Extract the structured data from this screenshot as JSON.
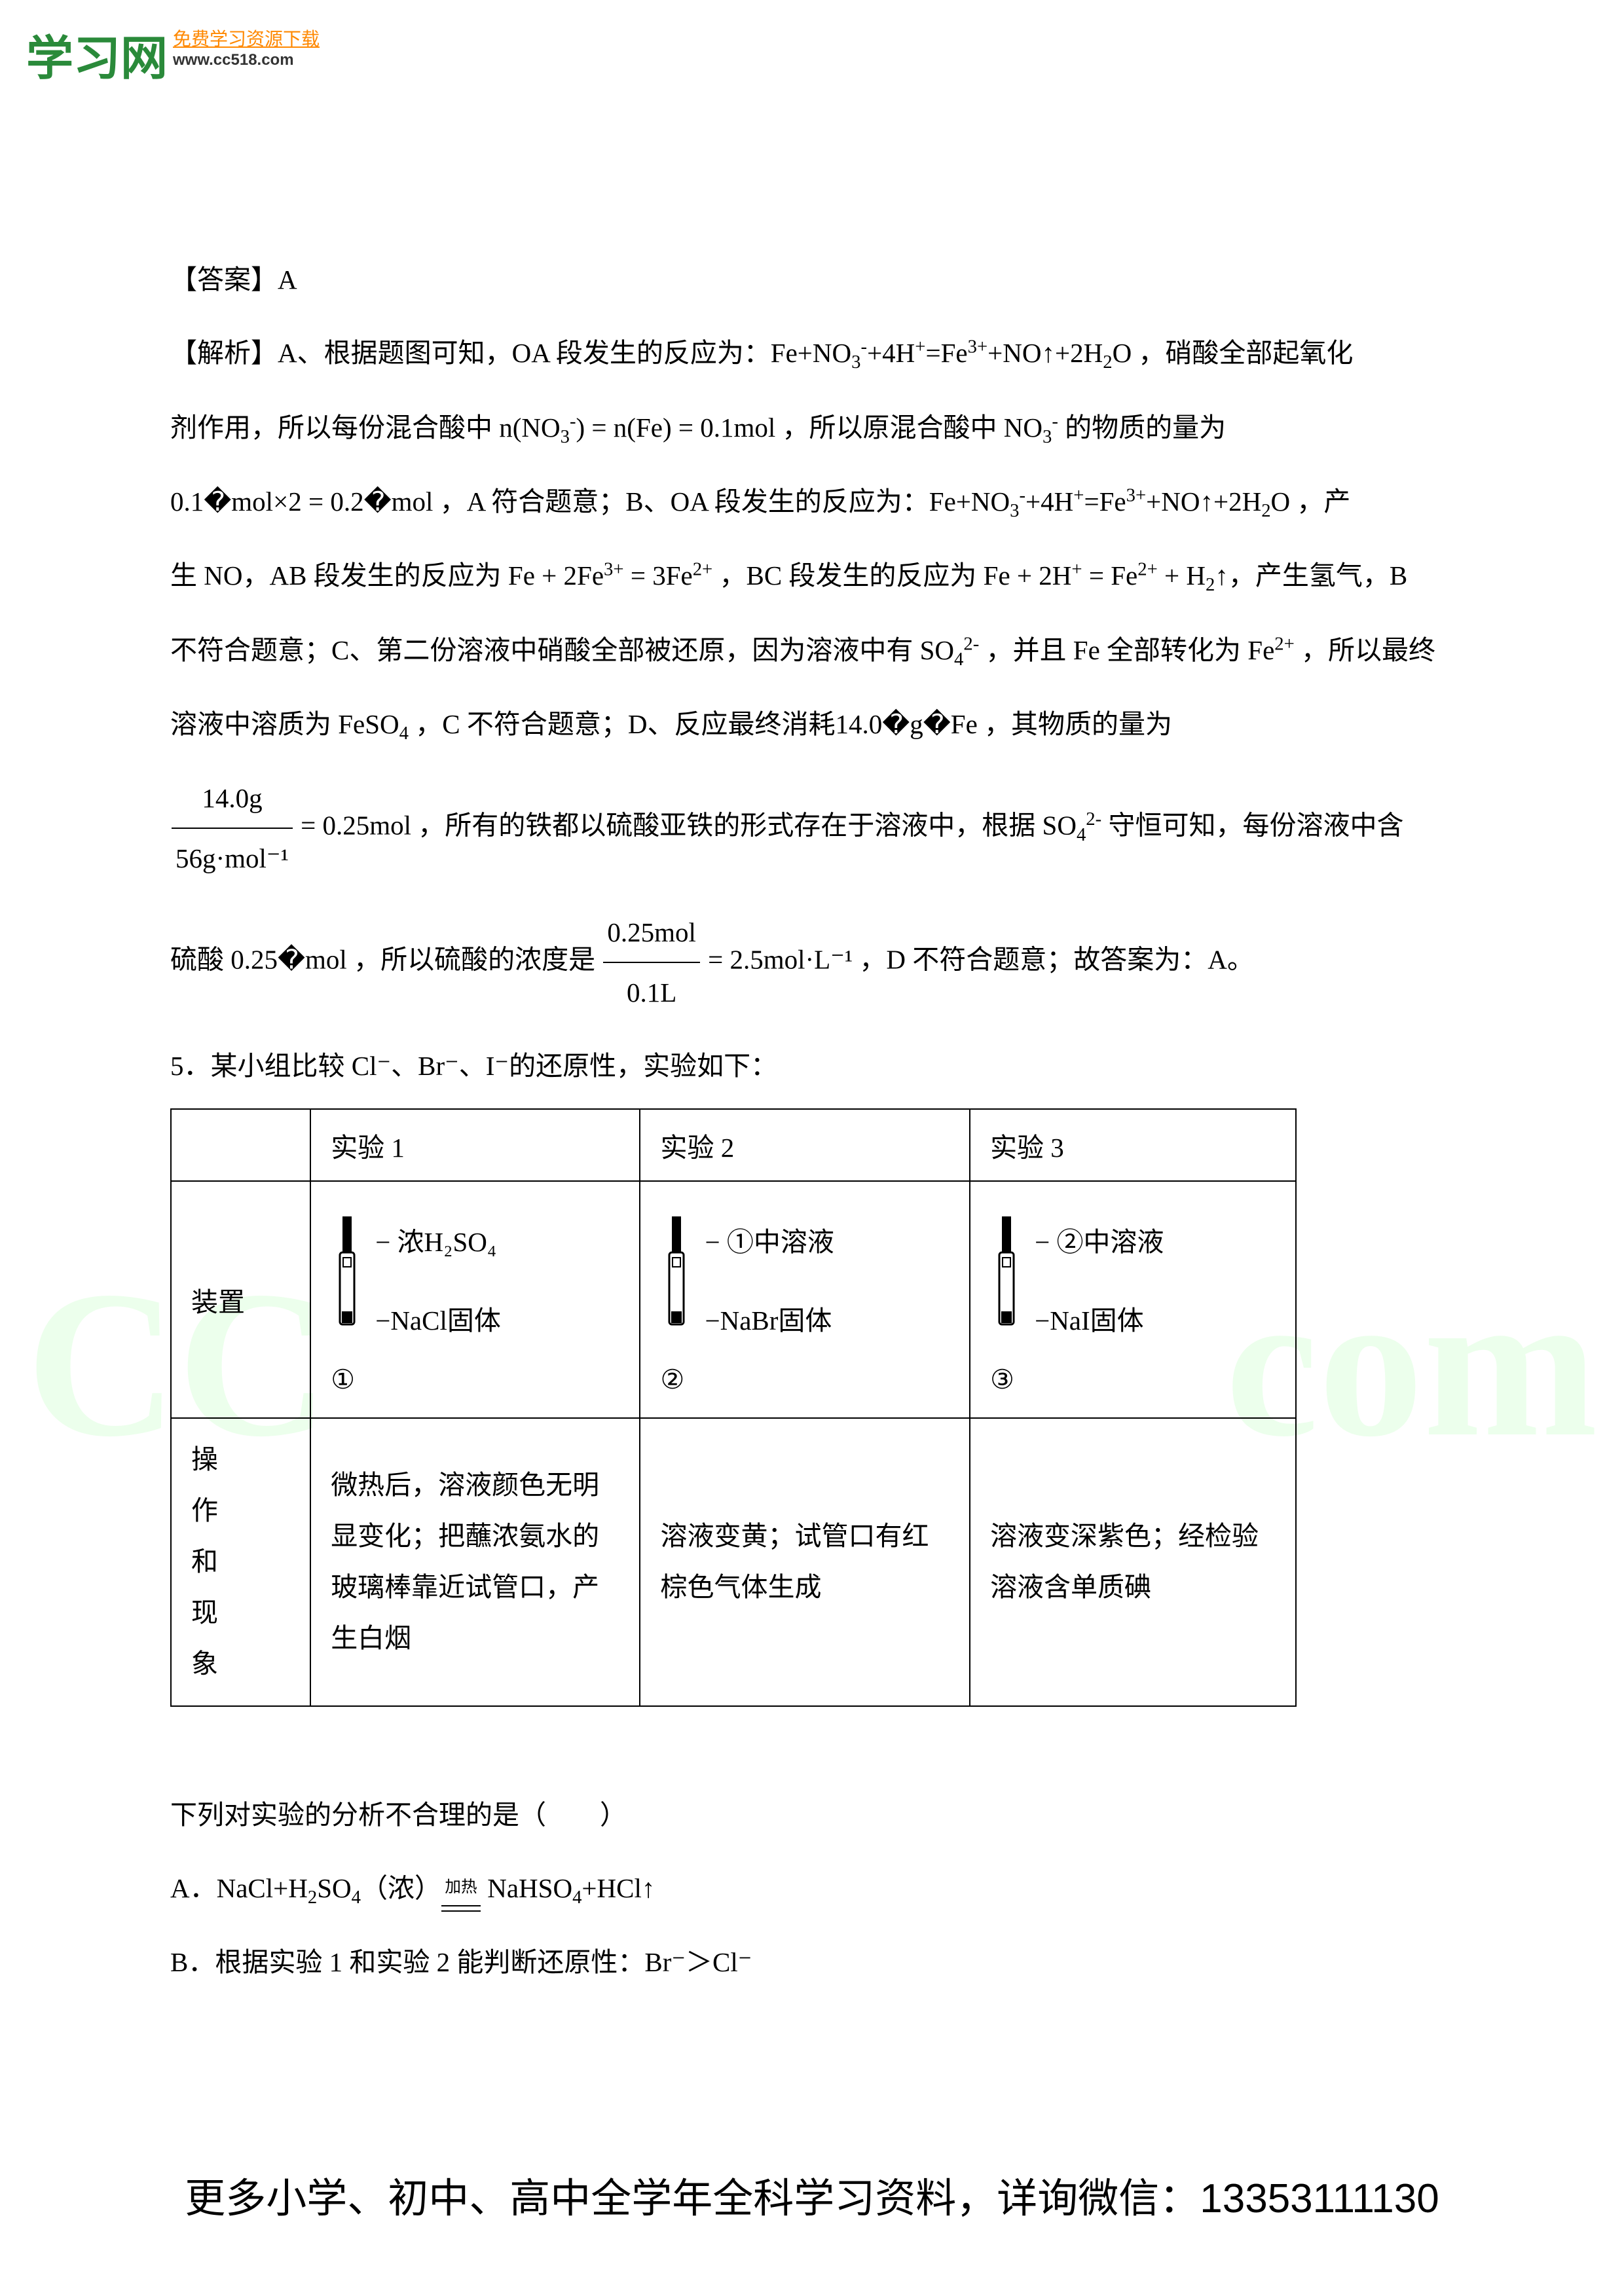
{
  "header": {
    "logo_cn": "学习网",
    "logo_tag": "免费学习资源下载",
    "logo_url": "www.cc518.com"
  },
  "watermark": {
    "left": "CC",
    "right": "com"
  },
  "answer_line": "【答案】A",
  "analysis_p1_a": "【解析】A、根据题图可知，OA 段发生的反应为：Fe+NO",
  "analysis_p1_b": "+4H",
  "analysis_p1_c": "=Fe",
  "analysis_p1_d": "+NO↑+2H",
  "analysis_p1_e": "O ，硝酸全部起氧化",
  "analysis_p2_a": "剂作用，所以每份混合酸中 n(NO",
  "analysis_p2_b": ") = n(Fe) = 0.1mol ，所以原混合酸中 NO",
  "analysis_p2_c": " 的物质的量为",
  "analysis_p3_a": "0.1�mol×2 = 0.2�mol ，A 符合题意；B、OA 段发生的反应为：Fe+NO",
  "analysis_p3_b": "+4H",
  "analysis_p3_c": "=Fe",
  "analysis_p3_d": "+NO↑+2H",
  "analysis_p3_e": "O ，产",
  "analysis_p4_a": "生 NO，AB 段发生的反应为 Fe + 2Fe",
  "analysis_p4_b": " = 3Fe",
  "analysis_p4_c": " ，BC 段发生的反应为 Fe + 2H",
  "analysis_p4_d": " = Fe",
  "analysis_p4_e": " + H",
  "analysis_p4_f": "↑，产生氢气，B",
  "analysis_p5_a": "不符合题意；C、第二份溶液中硝酸全部被还原，因为溶液中有 SO",
  "analysis_p5_b": " ，并且 Fe 全部转化为 Fe",
  "analysis_p5_c": " ，所以最终",
  "analysis_p6_a": "溶液中溶质为 FeSO",
  "analysis_p6_b": " ，C 不符合题意；D、反应最终消耗14.0�g�Fe ，其物质的量为",
  "frac1_num": "14.0g",
  "frac1_den": "56g·mol⁻¹",
  "analysis_p7_a": " = 0.25mol ，所有的铁都以硫酸亚铁的形式存在于溶液中，根据 SO",
  "analysis_p7_b": " 守恒可知，每份溶液中含",
  "analysis_p8_a": "硫酸 0.25�mol ，所以硫酸的浓度是 ",
  "frac2_num": "0.25mol",
  "frac2_den": "0.1L",
  "analysis_p8_b": " = 2.5mol·L⁻¹ ，D 不符合题意；故答案为：A。",
  "q5_intro": "5．某小组比较 Cl⁻、Br⁻、I⁻的还原性，实验如下：",
  "table": {
    "hdr_exp1": "实验 1",
    "hdr_exp2": "实验 2",
    "hdr_exp3": "实验 3",
    "row_apparatus": "装置",
    "row_ops": "操作和现象",
    "exp1_top": "浓H₂SO₄",
    "exp1_bot": "NaCl固体",
    "exp1_num": "①",
    "exp2_top": "①中溶液",
    "exp2_bot": "NaBr固体",
    "exp2_num": "②",
    "exp3_top": "②中溶液",
    "exp3_bot": "NaI固体",
    "exp3_num": "③",
    "exp1_obs": "微热后，溶液颜色无明显变化；把蘸浓氨水的玻璃棒靠近试管口，产生白烟",
    "exp2_obs": "溶液变黄；试管口有红棕色气体生成",
    "exp3_obs": "溶液变深紫色；经检验溶液含单质碘"
  },
  "q5_stem": "下列对实验的分析不合理的是（　　）",
  "opt_a_a": "A．NaCl+H",
  "opt_a_b": "SO",
  "opt_a_c": "（浓）",
  "opt_a_heat": "加热",
  "opt_a_d": " NaHSO",
  "opt_a_e": "+HCl↑",
  "opt_b": "B．根据实验 1 和实验 2 能判断还原性：Br⁻＞Cl⁻",
  "footer": "更多小学、初中、高中全学年全科学习资料，详询微信：13353111130"
}
